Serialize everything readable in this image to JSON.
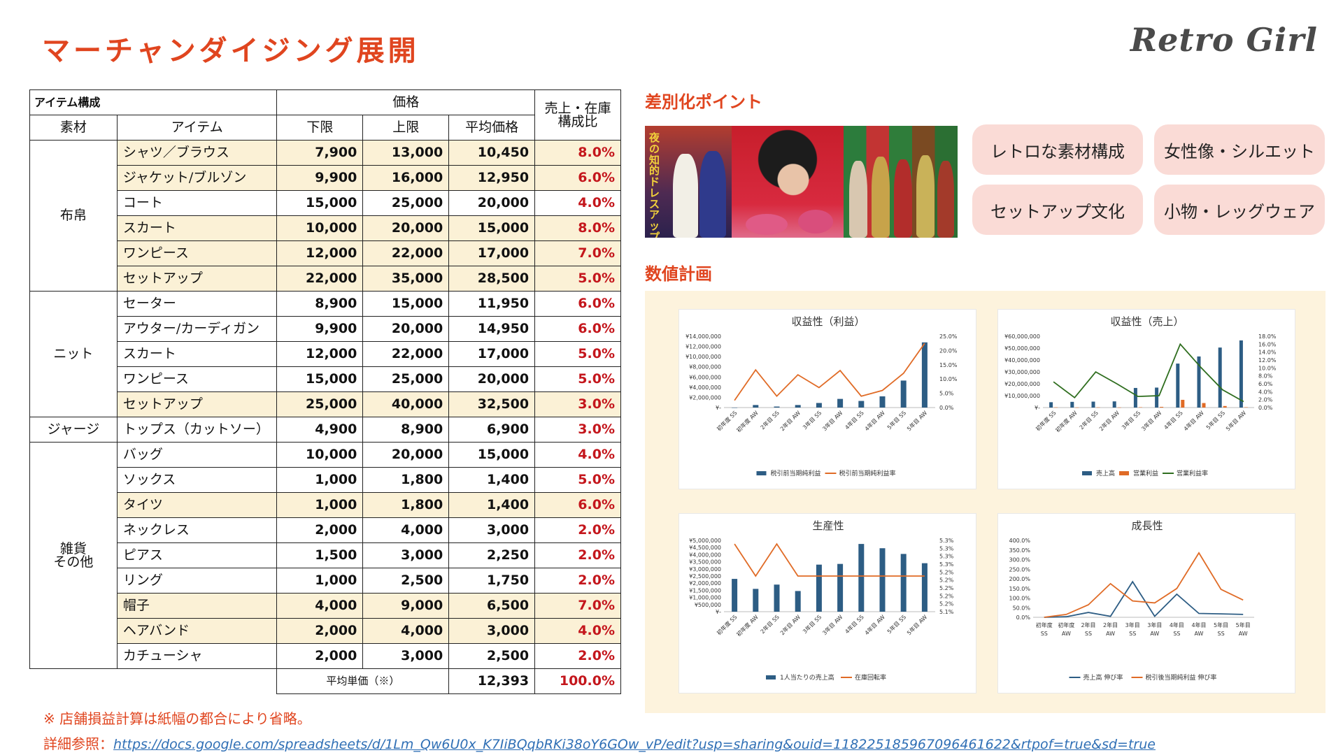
{
  "page": {
    "title": "マーチャンダイジング展開",
    "brand": "Retro Girl"
  },
  "table": {
    "caption": "アイテム構成",
    "headers": {
      "price": "価格",
      "ratio_line1": "売上・在庫",
      "ratio_line2": "構成比",
      "material": "素材",
      "item": "アイテム",
      "low": "下限",
      "high": "上限",
      "avg": "平均価格"
    },
    "groups": [
      {
        "name": "布帛",
        "rows": [
          {
            "item": "シャツ／ブラウス",
            "low": "7,900",
            "high": "13,000",
            "avg": "10,450",
            "ratio": "8.0%",
            "hl": true
          },
          {
            "item": "ジャケット/ブルゾン",
            "low": "9,900",
            "high": "16,000",
            "avg": "12,950",
            "ratio": "6.0%",
            "hl": true
          },
          {
            "item": "コート",
            "low": "15,000",
            "high": "25,000",
            "avg": "20,000",
            "ratio": "4.0%",
            "hl": false
          },
          {
            "item": "スカート",
            "low": "10,000",
            "high": "20,000",
            "avg": "15,000",
            "ratio": "8.0%",
            "hl": true
          },
          {
            "item": "ワンピース",
            "low": "12,000",
            "high": "22,000",
            "avg": "17,000",
            "ratio": "7.0%",
            "hl": true
          },
          {
            "item": "セットアップ",
            "low": "22,000",
            "high": "35,000",
            "avg": "28,500",
            "ratio": "5.0%",
            "hl": true
          }
        ]
      },
      {
        "name": "ニット",
        "rows": [
          {
            "item": "セーター",
            "low": "8,900",
            "high": "15,000",
            "avg": "11,950",
            "ratio": "6.0%",
            "hl": false
          },
          {
            "item": "アウター/カーディガン",
            "low": "9,900",
            "high": "20,000",
            "avg": "14,950",
            "ratio": "6.0%",
            "hl": false
          },
          {
            "item": "スカート",
            "low": "12,000",
            "high": "22,000",
            "avg": "17,000",
            "ratio": "5.0%",
            "hl": false
          },
          {
            "item": "ワンピース",
            "low": "15,000",
            "high": "25,000",
            "avg": "20,000",
            "ratio": "5.0%",
            "hl": false
          },
          {
            "item": "セットアップ",
            "low": "25,000",
            "high": "40,000",
            "avg": "32,500",
            "ratio": "3.0%",
            "hl": true
          }
        ]
      },
      {
        "name": "ジャージ",
        "rows": [
          {
            "item": "トップス（カットソー）",
            "low": "4,900",
            "high": "8,900",
            "avg": "6,900",
            "ratio": "3.0%",
            "hl": false
          }
        ]
      },
      {
        "name": "雑貨\nその他",
        "rows": [
          {
            "item": "バッグ",
            "low": "10,000",
            "high": "20,000",
            "avg": "15,000",
            "ratio": "4.0%",
            "hl": false,
            "tall": true
          },
          {
            "item": "ソックス",
            "low": "1,000",
            "high": "1,800",
            "avg": "1,400",
            "ratio": "5.0%",
            "hl": false
          },
          {
            "item": "タイツ",
            "low": "1,000",
            "high": "1,800",
            "avg": "1,400",
            "ratio": "6.0%",
            "hl": true
          },
          {
            "item": "ネックレス",
            "low": "2,000",
            "high": "4,000",
            "avg": "3,000",
            "ratio": "2.0%",
            "hl": false
          },
          {
            "item": "ピアス",
            "low": "1,500",
            "high": "3,000",
            "avg": "2,250",
            "ratio": "2.0%",
            "hl": false
          },
          {
            "item": "リング",
            "low": "1,000",
            "high": "2,500",
            "avg": "1,750",
            "ratio": "2.0%",
            "hl": false
          },
          {
            "item": "帽子",
            "low": "4,000",
            "high": "9,000",
            "avg": "6,500",
            "ratio": "7.0%",
            "hl": true
          },
          {
            "item": "ヘアバンド",
            "low": "2,000",
            "high": "4,000",
            "avg": "3,000",
            "ratio": "4.0%",
            "hl": true
          },
          {
            "item": "カチューシャ",
            "low": "2,000",
            "high": "3,000",
            "avg": "2,500",
            "ratio": "2.0%",
            "hl": false
          }
        ]
      }
    ],
    "footer": {
      "label": "平均単価（※）",
      "avg": "12,393",
      "ratio": "100.0%"
    }
  },
  "notes": {
    "line1": "※ 店舗損益計算は紙幅の都合により省略。",
    "line2_prefix": "詳細参照：",
    "link": "https://docs.google.com/spreadsheets/d/1Lm_Qw6U0x_K7IiBQqbRKi38oY6GOw_vP/edit?usp=sharing&ouid=118225185967096461622&rtpof=true&sd=true"
  },
  "diff": {
    "title": "差別化ポイント",
    "photo_caption": "夜の知的ドレスアップ",
    "points": [
      "レトロな素材構成",
      "女性像・シルエット",
      "セットアップ文化",
      "小物・レッグウェア"
    ]
  },
  "plan": {
    "title": "数値計画"
  },
  "colors": {
    "accent": "#e0451f",
    "bar": "#2d5d84",
    "line": "#e06b26",
    "green": "#2f6e1f",
    "highlight": "#fbf1d6"
  },
  "chart_data": [
    {
      "type": "bar",
      "title": "収益性（利益）",
      "categories": [
        "初年度 SS",
        "初年度 AW",
        "2年目 SS",
        "2年目 AW",
        "3年目 SS",
        "3年目 AW",
        "4年目 SS",
        "4年目 AW",
        "5年目 SS",
        "5年目 AW"
      ],
      "y_ticks": [
        "¥14,000,000",
        "¥12,000,000",
        "¥10,000,000",
        "¥8,000,000",
        "¥6,000,000",
        "¥4,000,000",
        "¥2,000,000",
        "¥-"
      ],
      "y2_ticks": [
        "25.0%",
        "20.0%",
        "15.0%",
        "10.0%",
        "5.0%",
        "0.0%"
      ],
      "ylim": [
        0,
        14000000
      ],
      "y2lim": [
        0,
        25
      ],
      "series": [
        {
          "name": "税引前当期純利益",
          "kind": "bar",
          "axis": "left",
          "values": [
            0,
            500000,
            200000,
            500000,
            900000,
            1700000,
            1300000,
            2200000,
            5300000,
            12800000
          ]
        },
        {
          "name": "税引前当期純利益率",
          "kind": "line",
          "axis": "right",
          "values": [
            2.5,
            13.2,
            4.0,
            11.5,
            7.0,
            13.0,
            4.0,
            6.0,
            12.0,
            22.5
          ]
        }
      ]
    },
    {
      "type": "bar",
      "title": "収益性（売上）",
      "categories": [
        "初年度 SS",
        "初年度 AW",
        "2年目 SS",
        "2年目 AW",
        "3年目 SS",
        "3年目 AW",
        "4年目 SS",
        "4年目 AW",
        "5年目 SS",
        "5年目 AW"
      ],
      "y_ticks": [
        "¥60,000,000",
        "¥50,000,000",
        "¥40,000,000",
        "¥30,000,000",
        "¥20,000,000",
        "¥10,000,000",
        "¥-"
      ],
      "y2_ticks": [
        "18.0%",
        "16.0%",
        "14.0%",
        "12.0%",
        "10.0%",
        "8.0%",
        "6.0%",
        "4.0%",
        "2.0%",
        "0.0%"
      ],
      "ylim": [
        0,
        60000000
      ],
      "y2lim": [
        0,
        18
      ],
      "series": [
        {
          "name": "売上高",
          "kind": "bar",
          "axis": "left",
          "values": [
            4500000,
            4800000,
            5000000,
            5200000,
            16500000,
            16800000,
            37000000,
            43000000,
            50500000,
            56500000
          ]
        },
        {
          "name": "営業利益",
          "kind": "bar",
          "axis": "left",
          "values": [
            200000,
            100000,
            200000,
            100000,
            300000,
            600000,
            6500000,
            3800000,
            1300000,
            300000
          ]
        },
        {
          "name": "営業利益率",
          "kind": "line",
          "axis": "right",
          "values": [
            6.5,
            2.5,
            9.0,
            6.0,
            2.8,
            3.0,
            16.0,
            10.0,
            4.5,
            1.5
          ]
        }
      ]
    },
    {
      "type": "bar",
      "title": "生産性",
      "categories": [
        "初年度 SS",
        "初年度 AW",
        "2年目 SS",
        "2年目 AW",
        "3年目 SS",
        "3年目 AW",
        "4年目 SS",
        "4年目 AW",
        "5年目 SS",
        "5年目 AW"
      ],
      "y_ticks": [
        "¥5,000,000",
        "¥4,500,000",
        "¥4,000,000",
        "¥3,500,000",
        "¥3,000,000",
        "¥2,500,000",
        "¥2,000,000",
        "¥1,500,000",
        "¥1,000,000",
        "¥500,000",
        "¥-"
      ],
      "y2_ticks": [
        "5.3%",
        "5.3%",
        "5.3%",
        "5.3%",
        "5.2%",
        "5.2%",
        "5.2%",
        "5.2%",
        "5.2%",
        "5.1%"
      ],
      "ylim": [
        0,
        5000000
      ],
      "y2lim": [
        5.1,
        5.3
      ],
      "series": [
        {
          "name": "1人当たりの売上高",
          "kind": "bar",
          "axis": "left",
          "values": [
            2300000,
            1600000,
            1900000,
            1450000,
            3300000,
            3350000,
            4750000,
            4450000,
            4050000,
            3400000
          ]
        },
        {
          "name": "在庫回転率",
          "kind": "line",
          "axis": "right",
          "values": [
            5.29,
            5.2,
            5.29,
            5.2,
            5.2,
            5.2,
            5.2,
            5.2,
            5.2,
            5.2
          ]
        }
      ]
    },
    {
      "type": "line",
      "title": "成長性",
      "categories": [
        "初年度\nSS",
        "初年度\nAW",
        "2年目\nSS",
        "2年目\nAW",
        "3年目\nSS",
        "3年目\nAW",
        "4年目\nSS",
        "4年目\nAW",
        "5年目\nSS",
        "5年目\nAW"
      ],
      "y_ticks": [
        "400.0%",
        "350.0%",
        "300.0%",
        "250.0%",
        "200.0%",
        "150.0%",
        "100.0%",
        "50.0%",
        "0.0%"
      ],
      "ylim": [
        0,
        400
      ],
      "series": [
        {
          "name": "売上高 伸び率",
          "kind": "line",
          "axis": "left",
          "values": [
            0,
            3,
            25,
            5,
            185,
            5,
            120,
            20,
            18,
            15
          ]
        },
        {
          "name": "税引後当期純利益 伸び率",
          "kind": "line",
          "axis": "left",
          "values": [
            0,
            15,
            65,
            175,
            85,
            75,
            150,
            335,
            145,
            90
          ]
        }
      ]
    }
  ]
}
